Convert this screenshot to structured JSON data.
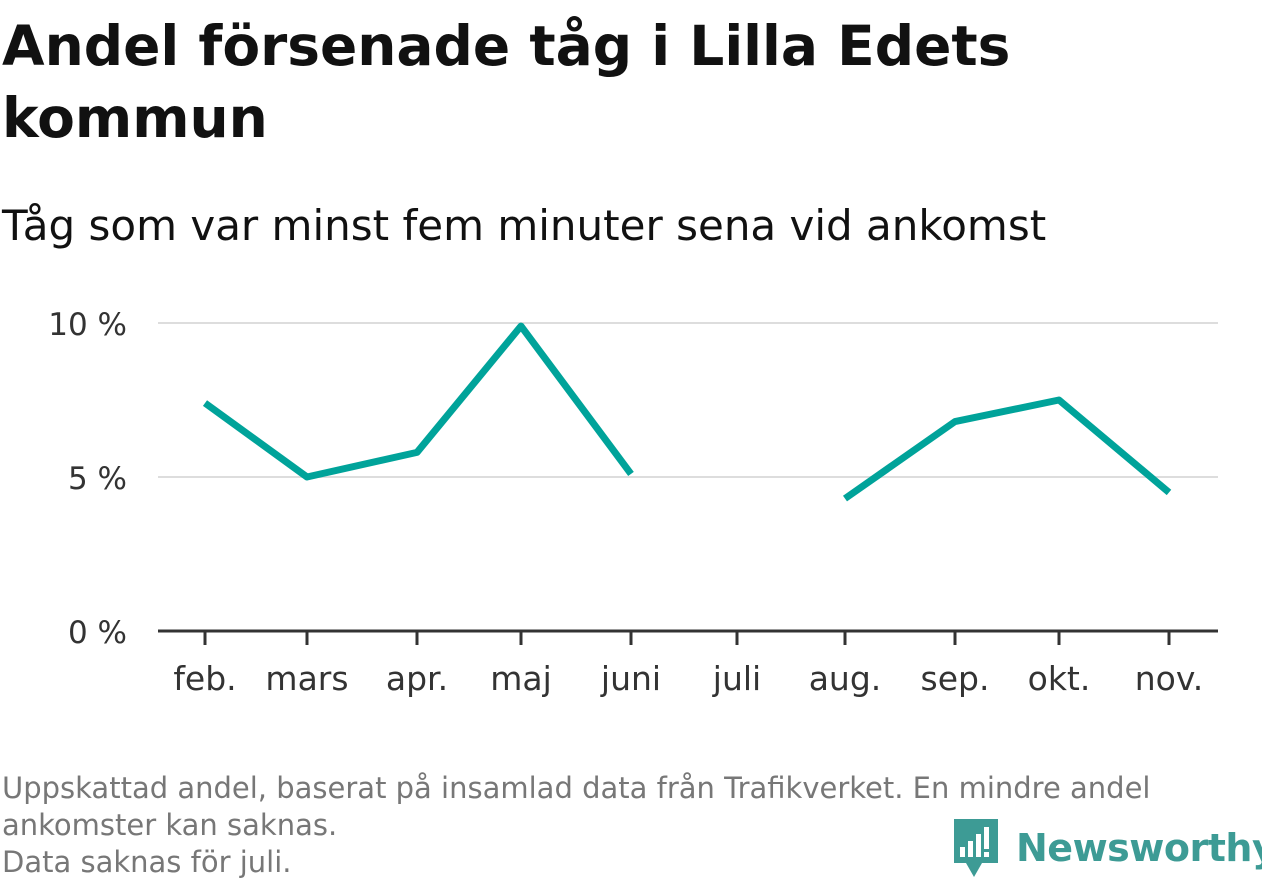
{
  "header": {
    "title": "Andel försenade tåg i Lilla Edets kommun",
    "subtitle": "Tåg som var minst fem minuter sena vid ankomst"
  },
  "chart_data": {
    "type": "line",
    "categories": [
      "feb.",
      "mars",
      "apr.",
      "maj",
      "juni",
      "juli",
      "aug.",
      "sep.",
      "okt.",
      "nov."
    ],
    "series": [
      {
        "values": [
          7.4,
          5.0,
          5.8,
          9.9,
          5.1,
          null,
          4.3,
          6.8,
          7.5,
          4.5
        ],
        "color": "#00a39a"
      }
    ],
    "yticks": [
      {
        "value": 0,
        "label": "0 %"
      },
      {
        "value": 5,
        "label": "5 %"
      },
      {
        "value": 10,
        "label": "10 %"
      }
    ],
    "ylim": [
      0,
      10
    ],
    "xlabel": "",
    "ylabel": "",
    "grid": true,
    "legend": "none",
    "gridline_color": "#dddddd",
    "axis_color": "#333333",
    "tick_label_color": "#333333"
  },
  "footer": {
    "note_line1": "Uppskattad andel, baserat på insamlad data från Trafikverket. En mindre andel ankomster kan saknas.",
    "note_line2": "Data saknas för juli.",
    "brand_name": "Newsworthy",
    "brand_icon": "newsworthy-logo-icon",
    "brand_color": "#3d9b95"
  }
}
